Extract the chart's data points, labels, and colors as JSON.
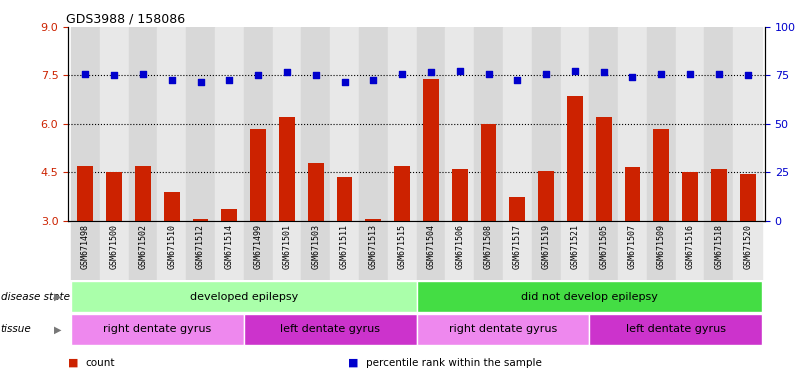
{
  "title": "GDS3988 / 158086",
  "samples": [
    "GSM671498",
    "GSM671500",
    "GSM671502",
    "GSM671510",
    "GSM671512",
    "GSM671514",
    "GSM671499",
    "GSM671501",
    "GSM671503",
    "GSM671511",
    "GSM671513",
    "GSM671515",
    "GSM671504",
    "GSM671506",
    "GSM671508",
    "GSM671517",
    "GSM671519",
    "GSM671521",
    "GSM671505",
    "GSM671507",
    "GSM671509",
    "GSM671516",
    "GSM671518",
    "GSM671520"
  ],
  "bar_values": [
    4.7,
    4.5,
    4.7,
    3.9,
    3.05,
    3.35,
    5.85,
    6.2,
    4.8,
    4.35,
    3.05,
    4.7,
    7.4,
    4.6,
    6.0,
    3.75,
    4.55,
    6.85,
    6.2,
    4.65,
    5.85,
    4.5,
    4.6,
    4.45
  ],
  "dot_values": [
    7.55,
    7.5,
    7.55,
    7.35,
    7.3,
    7.35,
    7.5,
    7.6,
    7.5,
    7.3,
    7.35,
    7.55,
    7.6,
    7.65,
    7.55,
    7.35,
    7.55,
    7.65,
    7.6,
    7.45,
    7.55,
    7.55,
    7.55,
    7.5
  ],
  "bar_color": "#cc2200",
  "dot_color": "#0000cc",
  "ylim_left": [
    3,
    9
  ],
  "ylim_right": [
    0,
    100
  ],
  "yticks_left": [
    3,
    4.5,
    6,
    7.5,
    9
  ],
  "yticks_right": [
    0,
    25,
    50,
    75,
    100
  ],
  "hlines": [
    4.5,
    6.0,
    7.5
  ],
  "disease_state_groups": [
    {
      "label": "developed epilepsy",
      "start": 0,
      "end": 11,
      "color": "#aaffaa"
    },
    {
      "label": "did not develop epilepsy",
      "start": 12,
      "end": 23,
      "color": "#44dd44"
    }
  ],
  "tissue_groups": [
    {
      "label": "right dentate gyrus",
      "start": 0,
      "end": 5,
      "color": "#ee88ee"
    },
    {
      "label": "left dentate gyrus",
      "start": 6,
      "end": 11,
      "color": "#cc33cc"
    },
    {
      "label": "right dentate gyrus",
      "start": 12,
      "end": 17,
      "color": "#ee88ee"
    },
    {
      "label": "left dentate gyrus",
      "start": 18,
      "end": 23,
      "color": "#cc33cc"
    }
  ],
  "col_bg_even": "#d8d8d8",
  "col_bg_odd": "#e8e8e8",
  "legend_items": [
    {
      "label": "count",
      "color": "#cc2200"
    },
    {
      "label": "percentile rank within the sample",
      "color": "#0000cc"
    }
  ],
  "bar_width": 0.55
}
